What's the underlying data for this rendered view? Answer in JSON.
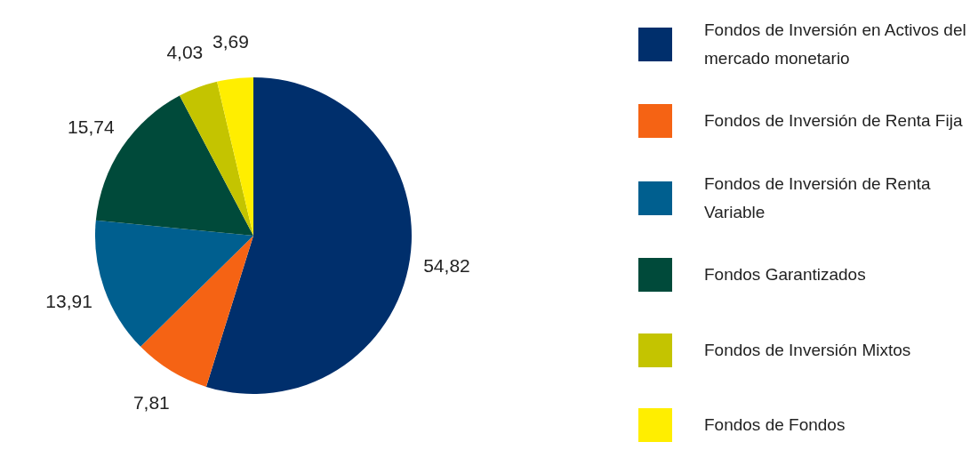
{
  "chart_data": {
    "type": "pie",
    "categories": [
      "Fondos de Inversión en Activos del mercado monetario",
      "Fondos de Inversión de Renta Fija",
      "Fondos de Inversión de Renta Variable",
      "Fondos Garantizados",
      "Fondos de Inversión Mixtos",
      "Fondos de Fondos"
    ],
    "values": [
      54.82,
      7.81,
      13.91,
      15.74,
      4.03,
      3.69
    ],
    "value_labels": [
      "54,82",
      "7,81",
      "13,91",
      "15,74",
      "4,03",
      "3,69"
    ],
    "colors": [
      "#002f6c",
      "#f56314",
      "#005f8f",
      "#004a3a",
      "#c4c400",
      "#ffee00"
    ],
    "legend": "right"
  }
}
